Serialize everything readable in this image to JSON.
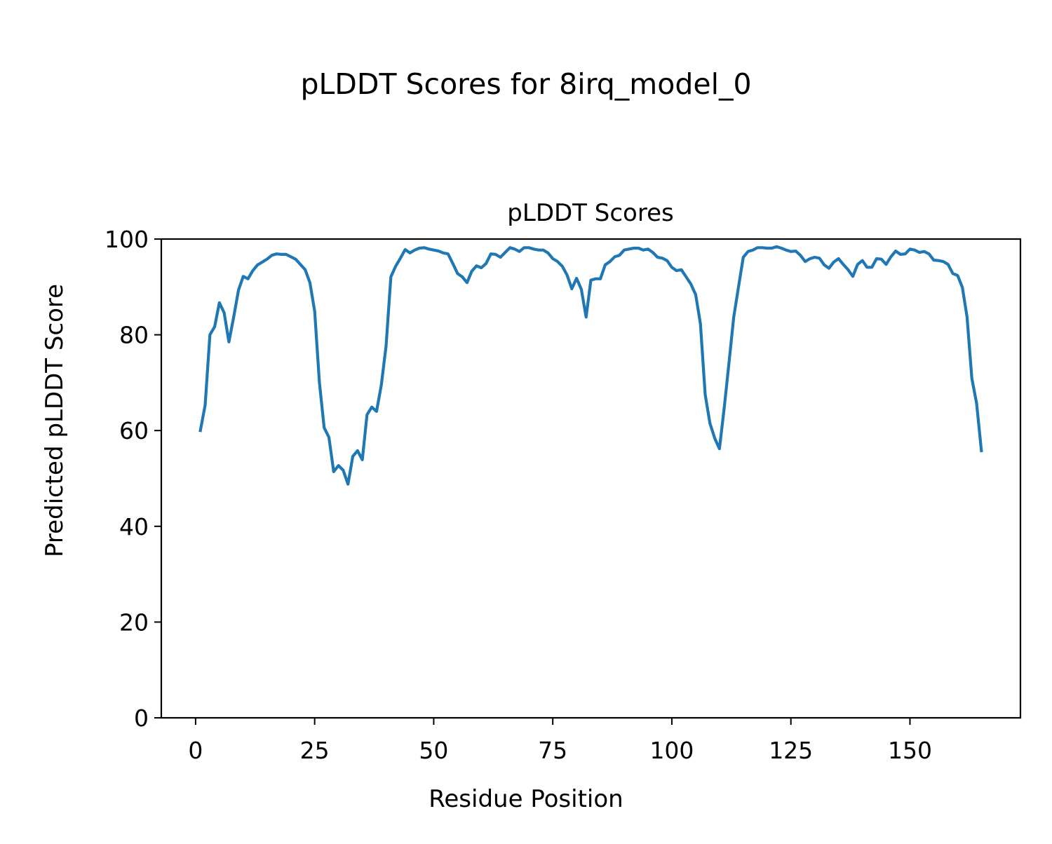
{
  "figure_title": "pLDDT Scores for 8irq_model_0",
  "chart_data": {
    "type": "line",
    "title": "pLDDT Scores",
    "xlabel": "Residue Position",
    "ylabel": "Predicted pLDDT Score",
    "xlim": [
      -7.2,
      173.2
    ],
    "ylim": [
      0,
      100
    ],
    "xticks": [
      0,
      25,
      50,
      75,
      100,
      125,
      150
    ],
    "yticks": [
      0,
      20,
      40,
      60,
      80,
      100
    ],
    "grid": false,
    "line_color": "#1f77b4",
    "x_start": 1,
    "values": [
      60.0,
      65.3,
      80.0,
      81.7,
      86.7,
      84.6,
      78.5,
      83.7,
      89.3,
      92.2,
      91.7,
      93.4,
      94.6,
      95.2,
      95.8,
      96.6,
      96.9,
      96.8,
      96.8,
      96.3,
      95.8,
      94.7,
      93.6,
      90.9,
      84.9,
      70.1,
      60.6,
      58.6,
      51.4,
      52.7,
      51.7,
      48.8,
      54.6,
      55.8,
      53.9,
      63.3,
      64.9,
      64.0,
      69.5,
      77.7,
      92.1,
      94.3,
      96.0,
      97.8,
      97.1,
      97.7,
      98.1,
      98.2,
      97.9,
      97.7,
      97.5,
      97.1,
      96.9,
      94.9,
      92.8,
      92.1,
      90.9,
      93.3,
      94.4,
      94.0,
      94.9,
      96.9,
      96.8,
      96.2,
      97.2,
      98.2,
      97.9,
      97.4,
      98.2,
      98.2,
      97.9,
      97.7,
      97.7,
      97.1,
      95.9,
      95.3,
      94.3,
      92.5,
      89.6,
      91.8,
      89.5,
      83.7,
      91.4,
      91.7,
      91.7,
      94.6,
      95.3,
      96.3,
      96.6,
      97.7,
      97.9,
      98.1,
      98.1,
      97.7,
      97.9,
      97.2,
      96.2,
      96.0,
      95.5,
      94.1,
      93.4,
      93.6,
      92.1,
      90.6,
      88.4,
      82.3,
      67.5,
      61.5,
      58.4,
      56.2,
      64.7,
      74.1,
      83.7,
      90.0,
      96.2,
      97.4,
      97.7,
      98.2,
      98.2,
      98.1,
      98.1,
      98.4,
      98.1,
      97.7,
      97.4,
      97.5,
      96.6,
      95.3,
      95.9,
      96.2,
      96.0,
      94.6,
      93.9,
      95.2,
      95.9,
      94.7,
      93.6,
      92.2,
      94.7,
      95.5,
      94.1,
      94.1,
      95.9,
      95.8,
      94.7,
      96.3,
      97.5,
      96.8,
      96.9,
      97.9,
      97.7,
      97.2,
      97.4,
      96.9,
      95.6,
      95.5,
      95.3,
      94.7,
      92.8,
      92.4,
      89.9,
      83.7,
      70.9,
      65.7,
      55.8
    ]
  }
}
